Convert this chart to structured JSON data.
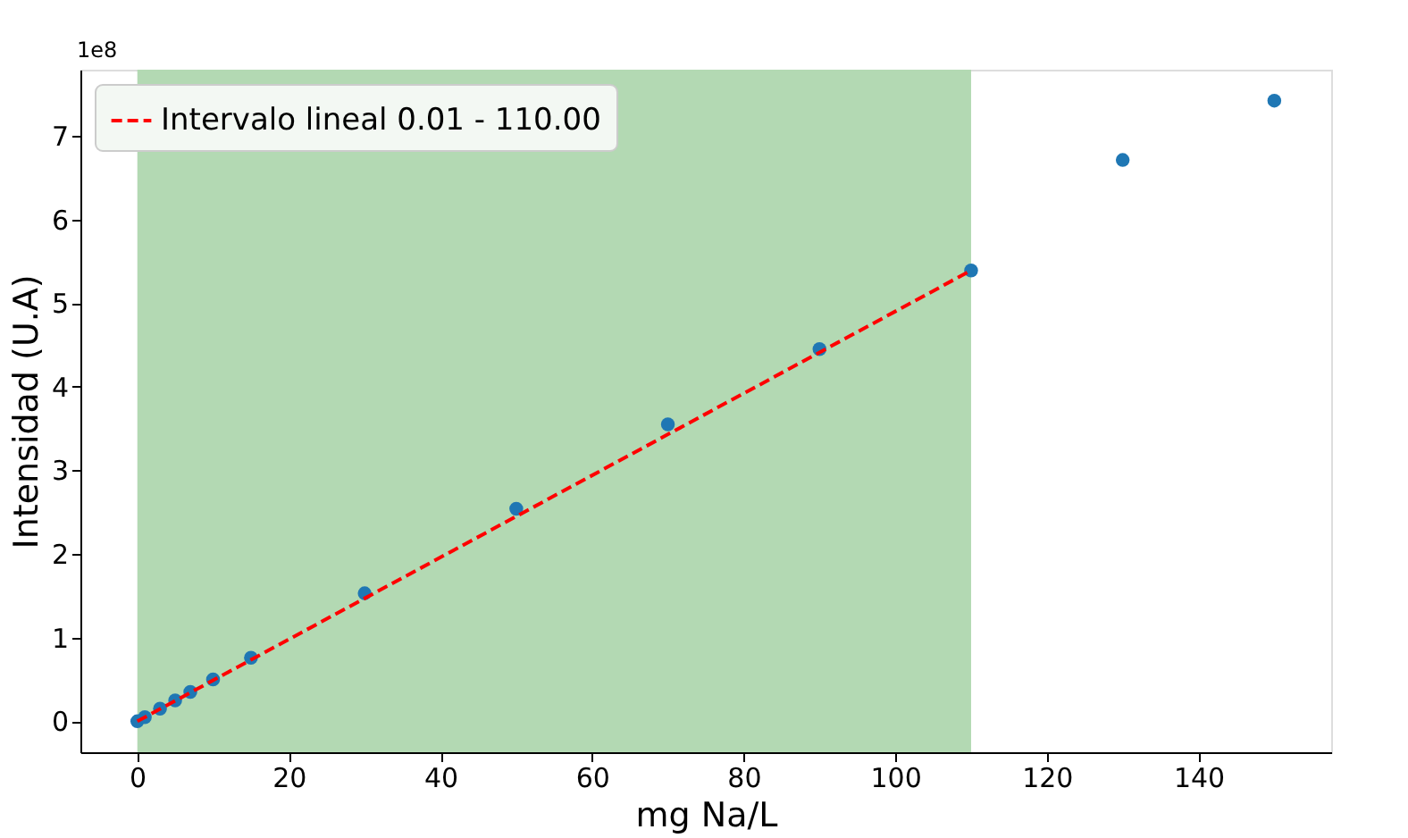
{
  "chart_data": {
    "type": "scatter",
    "xlabel": "mg Na/L",
    "ylabel": "Intensidad (U.A)",
    "annotations": [
      "1e8"
    ],
    "xlim": [
      -7.5,
      157.5
    ],
    "xticks": [
      0,
      20,
      40,
      60,
      80,
      100,
      120,
      140
    ],
    "ylim": [
      -0.37,
      7.79
    ],
    "yticks": [
      0,
      1,
      2,
      3,
      4,
      5,
      6,
      7
    ],
    "grid": false,
    "legend": "top left",
    "bands": [
      {
        "axis": "x",
        "from": 0.01,
        "to": 110,
        "color": "#b3d9b3"
      }
    ],
    "series": [
      {
        "marker": "circle",
        "color": "#1f77b4",
        "x": [
          0.01,
          1,
          3,
          5,
          7,
          10,
          15,
          30,
          50,
          70,
          90,
          110,
          130,
          150
        ],
        "values": [
          0,
          0.05,
          0.15,
          0.25,
          0.35,
          0.5,
          0.76,
          1.53,
          2.54,
          3.55,
          4.45,
          5.39,
          6.71,
          7.42
        ]
      },
      {
        "type": "line",
        "marker": "none",
        "name": "Intervalo lineal 0.01 - 110.00",
        "color": "#ff0000",
        "line_style": "dashed",
        "x": [
          0.01,
          110
        ],
        "values": [
          0,
          5.39
        ]
      }
    ]
  }
}
